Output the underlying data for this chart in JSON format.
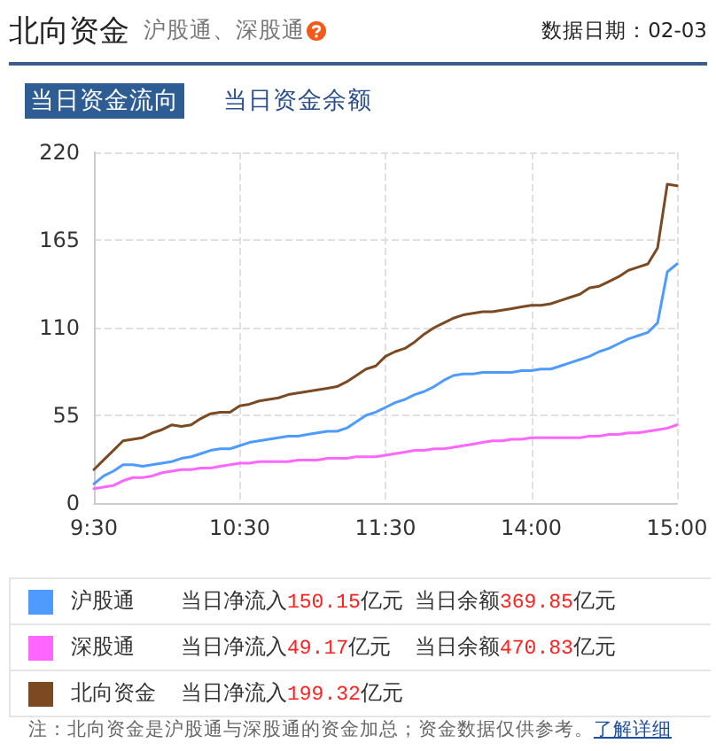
{
  "chart_data": {
    "type": "line",
    "title": "北向资金",
    "subtitle": "沪股通、深股通",
    "annotations": [
      "数据日期：02-03",
      "当日资金流向",
      "当日资金余额",
      "当日净流入150.15亿元",
      "当日余额369.85亿元",
      "当日净流入49.17亿元",
      "当日余额470.83亿元",
      "当日净流入199.32亿元",
      "注：北向资金是沪股通与深股通的资金加总；资金数据仅供参考。",
      "了解详细"
    ],
    "categories": [
      "9:30",
      null,
      null,
      null,
      null,
      null,
      null,
      null,
      null,
      null,
      null,
      null,
      null,
      null,
      null,
      "10:30",
      null,
      null,
      null,
      null,
      null,
      null,
      null,
      null,
      null,
      null,
      null,
      null,
      null,
      null,
      "11:30",
      null,
      null,
      null,
      null,
      null,
      null,
      null,
      null,
      null,
      null,
      null,
      null,
      null,
      null,
      "14:00",
      null,
      null,
      null,
      null,
      null,
      null,
      null,
      null,
      null,
      null,
      null,
      null,
      null,
      null,
      "15:00"
    ],
    "ylim": [
      0,
      220
    ],
    "yticks": [
      0,
      55,
      110,
      165,
      220
    ],
    "grid": true,
    "legend": "bottom",
    "marker": "none",
    "line_style": "solid",
    "series": [
      {
        "name": "沪股通",
        "color": "#4d9bff",
        "values": [
          12,
          17,
          20,
          24,
          24,
          23,
          24,
          25,
          26,
          28,
          29,
          31,
          33,
          34,
          34,
          36,
          38,
          39,
          40,
          41,
          42,
          42,
          43,
          44,
          45,
          45,
          47,
          51,
          55,
          57,
          60,
          63,
          65,
          68,
          70,
          73,
          77,
          80,
          81,
          81,
          82,
          82,
          82,
          82,
          83,
          83,
          84,
          84,
          86,
          88,
          90,
          92,
          95,
          97,
          100,
          103,
          105,
          107,
          113,
          145,
          150
        ]
      },
      {
        "name": "深股通",
        "color": "#ff66ff",
        "values": [
          9,
          10,
          11,
          14,
          16,
          16,
          17,
          19,
          20,
          21,
          21,
          22,
          22,
          23,
          24,
          25,
          25,
          26,
          26,
          26,
          26,
          27,
          27,
          27,
          28,
          28,
          28,
          29,
          29,
          29,
          30,
          31,
          32,
          33,
          33,
          34,
          34,
          35,
          36,
          37,
          38,
          39,
          39,
          40,
          40,
          41,
          41,
          41,
          41,
          41,
          41,
          42,
          42,
          43,
          43,
          44,
          44,
          45,
          46,
          47,
          49
        ]
      },
      {
        "name": "北向资金",
        "color": "#7b4a22",
        "values": [
          21,
          27,
          33,
          39,
          40,
          41,
          44,
          46,
          49,
          48,
          49,
          53,
          56,
          57,
          57,
          61,
          62,
          64,
          65,
          66,
          68,
          69,
          70,
          71,
          72,
          73,
          76,
          80,
          84,
          86,
          92,
          95,
          97,
          101,
          106,
          110,
          113,
          116,
          118,
          119,
          120,
          120,
          121,
          122,
          123,
          124,
          124,
          125,
          127,
          129,
          131,
          135,
          136,
          139,
          142,
          146,
          148,
          150,
          160,
          200,
          199
        ]
      }
    ]
  }
}
